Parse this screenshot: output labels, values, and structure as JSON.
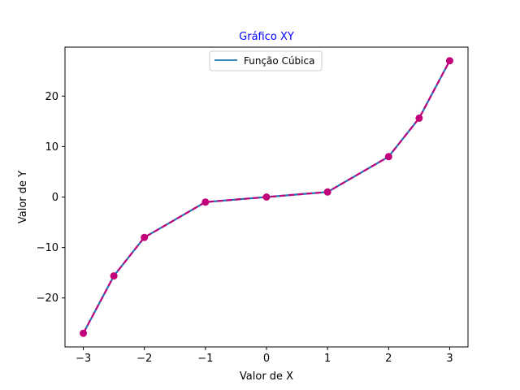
{
  "chart_data": {
    "type": "line",
    "title": "Gráfico XY",
    "xlabel": "Valor de X",
    "ylabel": "Valor de Y",
    "xlim": [
      -3.3,
      3.3
    ],
    "ylim": [
      -29.7,
      29.7
    ],
    "x_ticks": [
      -3,
      -2,
      -1,
      0,
      1,
      2,
      3
    ],
    "x_tick_labels": [
      "−3",
      "−2",
      "−1",
      "0",
      "1",
      "2",
      "3"
    ],
    "y_ticks": [
      -20,
      -10,
      0,
      10,
      20
    ],
    "y_tick_labels": [
      "−20",
      "−10",
      "0",
      "10",
      "20"
    ],
    "grid": false,
    "legend_position": "top-center",
    "series": [
      {
        "name": "Função Cúbica",
        "x": [
          -3,
          -2.5,
          -2,
          -1,
          0,
          1,
          2,
          2.5,
          3
        ],
        "y": [
          -27,
          -15.625,
          -8,
          -1,
          0,
          1,
          8,
          15.625,
          27
        ]
      }
    ],
    "colors": {
      "title": "#0000ff",
      "line": "#1f77b4",
      "dash_markers": "#c2007a"
    }
  }
}
